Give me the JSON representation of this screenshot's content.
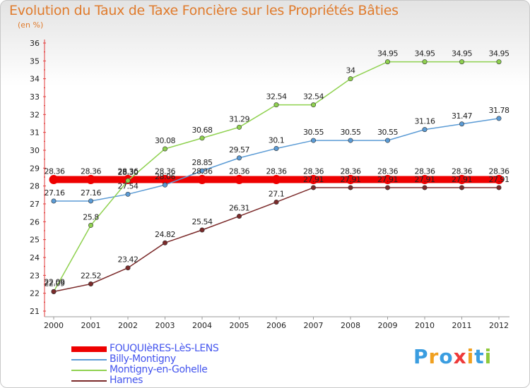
{
  "chart_data": {
    "type": "line",
    "title": "Evolution du Taux de Taxe Foncière sur les Propriétés Bâties",
    "ylabel": "(en %)",
    "xlabel": "",
    "ylim": [
      21,
      36
    ],
    "yticks": [
      "21",
      "22",
      "23",
      "24",
      "25",
      "26",
      "27",
      "28",
      "29",
      "30",
      "31",
      "32",
      "33",
      "34",
      "35",
      "36"
    ],
    "categories": [
      "2000",
      "2001",
      "2002",
      "2003",
      "2004",
      "2005",
      "2006",
      "2007",
      "2008",
      "2009",
      "2010",
      "2011",
      "2012"
    ],
    "series": [
      {
        "name": "FOUQUIèRES-LèS-LENS",
        "color": "#ee0000",
        "values": [
          28.36,
          28.36,
          28.36,
          28.36,
          28.36,
          28.36,
          28.36,
          28.36,
          28.36,
          28.36,
          28.36,
          28.36,
          28.36
        ],
        "labels": [
          "28.36",
          "28.36",
          "28.36",
          "28.36",
          "28.36",
          "28.36",
          "28.36",
          "28.36",
          "28.36",
          "28.36",
          "28.36",
          "28.36",
          "28.36"
        ]
      },
      {
        "name": "Billy-Montigny",
        "color": "#5b9bd5",
        "values": [
          27.16,
          27.16,
          27.54,
          28.06,
          28.85,
          29.57,
          30.1,
          30.55,
          30.55,
          30.55,
          31.16,
          31.47,
          31.78
        ],
        "labels": [
          "27.16",
          "27.16",
          "27.54",
          "28.06",
          "28.85",
          "29.57",
          "30.1",
          "30.55",
          "30.55",
          "30.55",
          "31.16",
          "31.47",
          "31.78"
        ]
      },
      {
        "name": "Montigny-en-Gohelle",
        "color": "#8fd14f",
        "values": [
          22.09,
          25.8,
          28.3,
          30.08,
          30.68,
          31.29,
          32.54,
          32.54,
          34,
          34.95,
          34.95,
          34.95,
          34.95
        ],
        "labels": [
          "22.09",
          "25.8",
          "28.30",
          "30.08",
          "30.68",
          "31.29",
          "32.54",
          "32.54",
          "34",
          "34.95",
          "34.95",
          "34.95",
          "34.95"
        ]
      },
      {
        "name": "Harnes",
        "color": "#7b2a2a",
        "values": [
          22.09,
          22.52,
          23.42,
          24.82,
          25.54,
          26.31,
          27.1,
          27.91,
          27.91,
          27.91,
          27.91,
          27.91,
          27.91
        ],
        "labels": [
          "22.09",
          "22.52",
          "23.42",
          "24.82",
          "25.54",
          "26.31",
          "27.1",
          "27.91",
          "27.91",
          "27.91",
          "27.91",
          "27.91",
          "27.91"
        ]
      }
    ],
    "legend": "bottom-left",
    "grid": false
  },
  "logo": {
    "letters": [
      "P",
      "r",
      "o",
      "x",
      "i",
      "t",
      "i"
    ],
    "colors": [
      "#3a9de0",
      "#f0a020",
      "#3a9de0",
      "#ee3a3a",
      "#f0a020",
      "#3a9de0",
      "#8fc93a"
    ]
  }
}
